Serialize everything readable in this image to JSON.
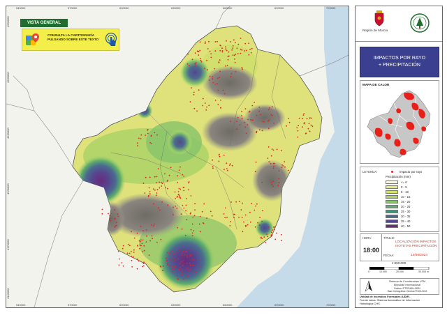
{
  "map": {
    "badge": "VISTA GENERAL",
    "banner": "CONSULTA LA CARTOGRAFÍA PULSANDO SOBRE ESTE TEXTO",
    "x_ticks": [
      "540000",
      "570000",
      "600000",
      "630000",
      "660000",
      "690000",
      "720000"
    ],
    "y_ticks": [
      "4290000",
      "4260000",
      "4230000",
      "4200000",
      "4170000",
      "4140000"
    ],
    "colors": {
      "sea": "#c5dbe9",
      "land_outside": "#f3f3ee",
      "region_base": "#dfe27a",
      "lightning": "#e0241f"
    }
  },
  "panel": {
    "logo_left": "Región de Murcia",
    "title_line1": "IMPACTOS POR RAYO",
    "title_line2": "+ PRECIPITACIÓN",
    "mini_map_label": "MAPA DE CALOR",
    "legend": {
      "label": "LEYENDA:",
      "point_label": "Impacto por rayo",
      "precip_title": "Precipitación (mm)",
      "classes": [
        {
          "label": "<= 0",
          "color": "#f7f7e3"
        },
        {
          "label": "0 - 5",
          "color": "#e8e77a"
        },
        {
          "label": "5 - 10",
          "color": "#cfe06b"
        },
        {
          "label": "10 - 15",
          "color": "#a8d267"
        },
        {
          "label": "15 - 20",
          "color": "#86c46a"
        },
        {
          "label": "20 - 25",
          "color": "#5eae6b"
        },
        {
          "label": "25 - 30",
          "color": "#4c8f7a"
        },
        {
          "label": "30 - 35",
          "color": "#4a6b8f"
        },
        {
          "label": "35 - 40",
          "color": "#55478e"
        },
        {
          "label": "40 - 50",
          "color": "#6a2a7e"
        }
      ]
    },
    "info": {
      "hora_label": "HORA:",
      "hora": "18:00",
      "titulo_label": "TÍTULO:",
      "titulo": "LOCALIZACIÓN IMPACTOS ISOYETAS PRECIPITACIÓN",
      "fecha_label": "FECHA:",
      "fecha": "14/08/2024"
    },
    "scale": {
      "ratio": "1:690.000",
      "labels": [
        "0",
        "10.000",
        "20.000",
        "30.000 m"
      ]
    },
    "coords": {
      "line1": "Sistema de Coordenadas UTM",
      "line2": "Elipsoide Internacional",
      "line3": "Datum ETRS89-H30N",
      "line4": "Base Cartográfica: Ortofoto PNOA 2019"
    },
    "footer": {
      "line1": "Unidad de Incendios Forestales (UDIF).",
      "line2": "Fuente datos: Sistema Automático de Información",
      "line3": "Hidrológica CHS."
    }
  }
}
